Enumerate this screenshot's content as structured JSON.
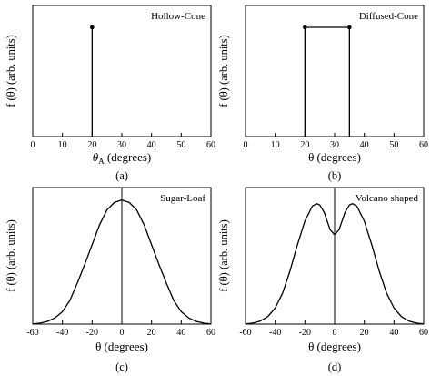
{
  "chart_data": [
    {
      "type": "line",
      "panel_caption": "(a)",
      "title": "Hollow-Cone",
      "xlabel": "θ",
      "xlabel_sub": "A",
      "xlabel_unit": " (degrees)",
      "ylabel": "f (θ) (arb. units)",
      "xlim": [
        0,
        60
      ],
      "xticks": [
        0,
        10,
        20,
        30,
        40,
        50,
        60
      ],
      "ylim": [
        0,
        1.2
      ],
      "grid": false,
      "series": [
        {
          "x": [
            20,
            20
          ],
          "y": [
            0,
            1
          ],
          "markers": [
            [
              20,
              1
            ]
          ]
        }
      ]
    },
    {
      "type": "line",
      "panel_caption": "(b)",
      "title": "Diffused-Cone",
      "xlabel": "θ (degrees)",
      "ylabel": "f (θ) (arb. units)",
      "xlim": [
        0,
        60
      ],
      "xticks": [
        0,
        10,
        20,
        30,
        40,
        50,
        60
      ],
      "ylim": [
        0,
        1.2
      ],
      "grid": false,
      "series": [
        {
          "x": [
            20,
            20,
            35,
            35
          ],
          "y": [
            0,
            1,
            1,
            0
          ],
          "markers": [
            [
              20,
              1
            ],
            [
              35,
              1
            ]
          ]
        }
      ]
    },
    {
      "type": "line",
      "panel_caption": "(c)",
      "title": "Sugar-Loaf",
      "xlabel": "θ (degrees)",
      "ylabel": "f (θ) (arb. units)",
      "xlim": [
        -60,
        60
      ],
      "xticks": [
        -60,
        -40,
        -20,
        0,
        20,
        40,
        60
      ],
      "ylim": [
        0,
        1.1
      ],
      "vline_at": 0,
      "grid": false,
      "series": [
        {
          "x": [
            -60,
            -55,
            -50,
            -45,
            -40,
            -35,
            -30,
            -25,
            -20,
            -15,
            -10,
            -5,
            0,
            5,
            10,
            15,
            20,
            25,
            30,
            35,
            40,
            45,
            50,
            55,
            60
          ],
          "y": [
            0.002,
            0.008,
            0.022,
            0.05,
            0.1,
            0.19,
            0.33,
            0.48,
            0.64,
            0.8,
            0.92,
            0.98,
            1.0,
            0.98,
            0.92,
            0.8,
            0.64,
            0.48,
            0.33,
            0.19,
            0.1,
            0.05,
            0.022,
            0.008,
            0.002
          ]
        }
      ]
    },
    {
      "type": "line",
      "panel_caption": "(d)",
      "title": "Volcano shaped",
      "xlabel": "θ (degrees)",
      "ylabel": "f (θ) (arb. units)",
      "xlim": [
        -60,
        60
      ],
      "xticks": [
        -60,
        -40,
        -20,
        0,
        20,
        40,
        60
      ],
      "ylim": [
        0,
        1.1
      ],
      "vline_at": 0,
      "grid": false,
      "series": [
        {
          "x": [
            -60,
            -55,
            -50,
            -45,
            -40,
            -35,
            -30,
            -25,
            -20,
            -15,
            -12,
            -10,
            -7,
            -5,
            -3,
            0,
            3,
            5,
            7,
            10,
            12,
            15,
            20,
            25,
            30,
            35,
            40,
            45,
            50,
            55,
            60
          ],
          "y": [
            0.002,
            0.008,
            0.025,
            0.06,
            0.13,
            0.25,
            0.43,
            0.64,
            0.83,
            0.95,
            0.97,
            0.96,
            0.9,
            0.83,
            0.76,
            0.72,
            0.76,
            0.83,
            0.9,
            0.96,
            0.97,
            0.95,
            0.83,
            0.64,
            0.43,
            0.25,
            0.13,
            0.06,
            0.025,
            0.008,
            0.002
          ]
        }
      ]
    }
  ]
}
